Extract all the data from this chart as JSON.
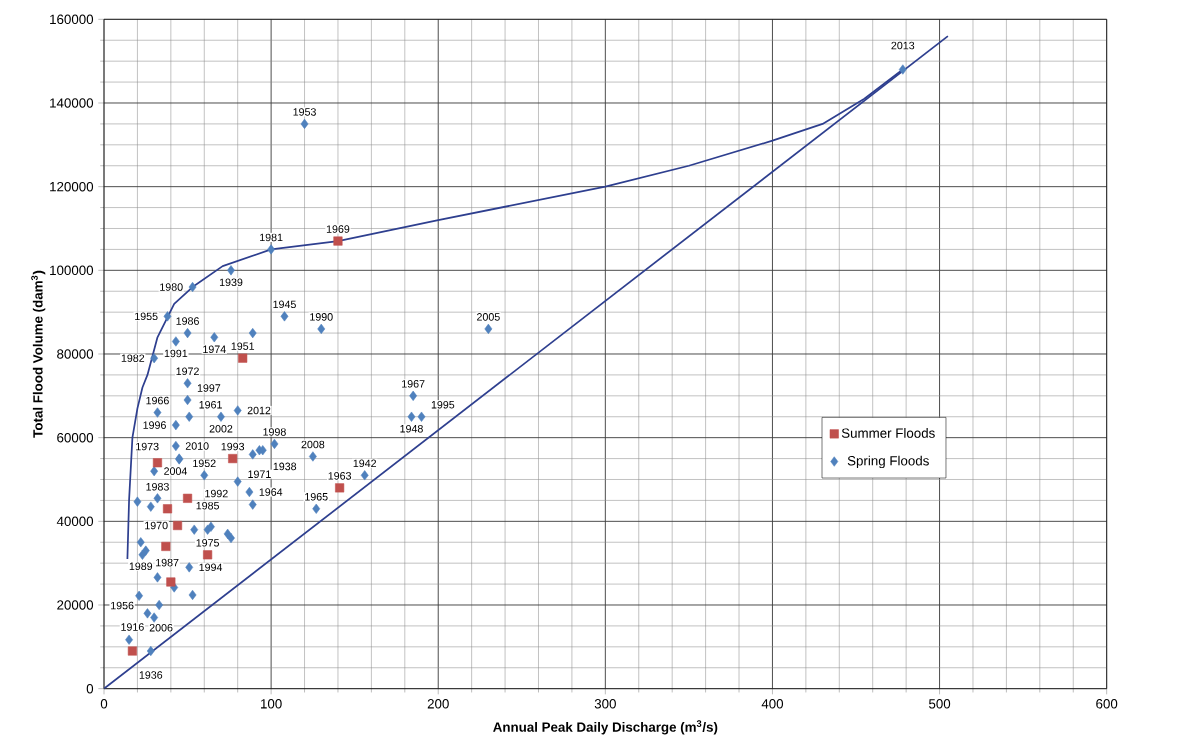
{
  "chart_data": {
    "type": "scatter",
    "xlabel": "Annual Peak Daily Discharge (m$^{3}$/s)",
    "ylabel": "Total Flood Volume (dam$^{3}$)",
    "xlim": [
      0,
      600
    ],
    "ylim": [
      0,
      160000
    ],
    "xticks": [
      0,
      100,
      200,
      300,
      400,
      500,
      600
    ],
    "yticks": [
      0,
      20000,
      40000,
      60000,
      80000,
      100000,
      120000,
      140000,
      160000
    ],
    "grid": true,
    "legend": "right",
    "series": [
      {
        "type": "line",
        "color": "#2e3f8f",
        "marker": "none",
        "x": [
          14,
          15,
          17,
          20,
          23,
          26,
          32,
          42,
          53,
          71,
          100,
          140,
          200,
          250,
          300,
          350,
          400,
          430,
          455,
          478
        ],
        "values": [
          31000,
          45000,
          60000,
          67000,
          72000,
          75000,
          84000,
          92000,
          96000,
          101000,
          105000,
          107000,
          112000,
          116000,
          120000,
          125000,
          131000,
          135000,
          141000,
          148000
        ]
      },
      {
        "type": "line",
        "color": "#2e3f8f",
        "marker": "none",
        "x": [
          0,
          505
        ],
        "values": [
          0,
          156000
        ]
      },
      {
        "name": "Summer Floods",
        "color": "#c0504d",
        "marker": "square",
        "x": [
          140,
          83,
          77,
          141,
          32,
          44,
          62,
          17,
          37,
          38,
          50,
          40
        ],
        "values": [
          107000,
          79000,
          55000,
          48000,
          54000,
          39000,
          32000,
          9000,
          34000,
          43000,
          45500,
          25500
        ]
      },
      {
        "name": "Spring Floods",
        "color": "#4f81bd",
        "marker": "diamond",
        "x": [
          478,
          120,
          100,
          76,
          53,
          108,
          130,
          230,
          50,
          66,
          43,
          30,
          89,
          50,
          185,
          184,
          190,
          32,
          51,
          70,
          80,
          102,
          43,
          93,
          89,
          125,
          156,
          127,
          87,
          80,
          60,
          62,
          51,
          28,
          15,
          50,
          43,
          38,
          45,
          30,
          22,
          25,
          30,
          76,
          89,
          54,
          74,
          20,
          28,
          32,
          45,
          26,
          33,
          21,
          53,
          42,
          32,
          23,
          64,
          95
        ],
        "values": [
          148000,
          135000,
          105000,
          100000,
          96000,
          89000,
          86000,
          86000,
          85000,
          84000,
          83000,
          79000,
          85000,
          73000,
          70000,
          65000,
          65000,
          66000,
          65000,
          65000,
          66500,
          58500,
          58000,
          57000,
          56000,
          55500,
          51000,
          43000,
          47000,
          49500,
          51000,
          38000,
          29000,
          9000,
          11700,
          69000,
          63000,
          89000,
          55000,
          52000,
          35000,
          33000,
          17000,
          36000,
          44000,
          38000,
          37000,
          44700,
          43500,
          45500,
          54800,
          18000,
          20000,
          22200,
          22400,
          24200,
          26600,
          32000,
          38700,
          57000
        ]
      }
    ],
    "annotations": [
      {
        "text": "1969",
        "x": 140,
        "y": 107000
      },
      {
        "text": "1951",
        "x": 83,
        "y": 79000
      },
      {
        "text": "1993",
        "x": 77,
        "y": 55000
      },
      {
        "text": "1963",
        "x": 141,
        "y": 48000
      },
      {
        "text": "1983",
        "x": 32,
        "y": 54000
      },
      {
        "text": "1970",
        "x": 44,
        "y": 39000
      },
      {
        "text": "1975",
        "x": 62,
        "y": 32000
      },
      {
        "text": "1916",
        "x": 17,
        "y": 9000
      },
      {
        "text": "2013",
        "x": 478,
        "y": 148000
      },
      {
        "text": "1953",
        "x": 120,
        "y": 135000
      },
      {
        "text": "1981",
        "x": 100,
        "y": 105000
      },
      {
        "text": "1939",
        "x": 76,
        "y": 100000
      },
      {
        "text": "1980",
        "x": 53,
        "y": 96000
      },
      {
        "text": "1945",
        "x": 108,
        "y": 89000
      },
      {
        "text": "1990",
        "x": 130,
        "y": 86000
      },
      {
        "text": "2005",
        "x": 230,
        "y": 86000
      },
      {
        "text": "1986",
        "x": 50,
        "y": 85000
      },
      {
        "text": "1974",
        "x": 66,
        "y": 84000
      },
      {
        "text": "1991",
        "x": 43,
        "y": 83000
      },
      {
        "text": "1982",
        "x": 30,
        "y": 79000
      },
      {
        "text": "1972",
        "x": 50,
        "y": 73000
      },
      {
        "text": "1967",
        "x": 185,
        "y": 70000
      },
      {
        "text": "1948",
        "x": 184,
        "y": 65000
      },
      {
        "text": "1995",
        "x": 190,
        "y": 65000
      },
      {
        "text": "1966",
        "x": 32,
        "y": 66000
      },
      {
        "text": "1961",
        "x": 51,
        "y": 65000
      },
      {
        "text": "2002",
        "x": 70,
        "y": 65000
      },
      {
        "text": "2012",
        "x": 80,
        "y": 66500
      },
      {
        "text": "1998",
        "x": 102,
        "y": 58500
      },
      {
        "text": "2010",
        "x": 43,
        "y": 58000
      },
      {
        "text": "1971",
        "x": 93,
        "y": 57000
      },
      {
        "text": "1938",
        "x": 89,
        "y": 56000
      },
      {
        "text": "2008",
        "x": 125,
        "y": 55500
      },
      {
        "text": "1942",
        "x": 156,
        "y": 51000
      },
      {
        "text": "1965",
        "x": 127,
        "y": 43000
      },
      {
        "text": "1964",
        "x": 87,
        "y": 47000
      },
      {
        "text": "1992",
        "x": 80,
        "y": 49500
      },
      {
        "text": "1952",
        "x": 60,
        "y": 51000
      },
      {
        "text": "1985",
        "x": 62,
        "y": 38000
      },
      {
        "text": "1994",
        "x": 51,
        "y": 29000
      },
      {
        "text": "1936",
        "x": 28,
        "y": 9000
      },
      {
        "text": "2006",
        "x": 15,
        "y": 11700
      },
      {
        "text": "1997",
        "x": 50,
        "y": 69000
      },
      {
        "text": "1996",
        "x": 43,
        "y": 63000
      },
      {
        "text": "1955",
        "x": 38,
        "y": 89000
      },
      {
        "text": "1973",
        "x": 45,
        "y": 55000
      },
      {
        "text": "2004",
        "x": 30,
        "y": 52000
      },
      {
        "text": "1989",
        "x": 22,
        "y": 35000
      },
      {
        "text": "1987",
        "x": 25,
        "y": 33000
      },
      {
        "text": "1956",
        "x": 30,
        "y": 17000
      }
    ]
  }
}
